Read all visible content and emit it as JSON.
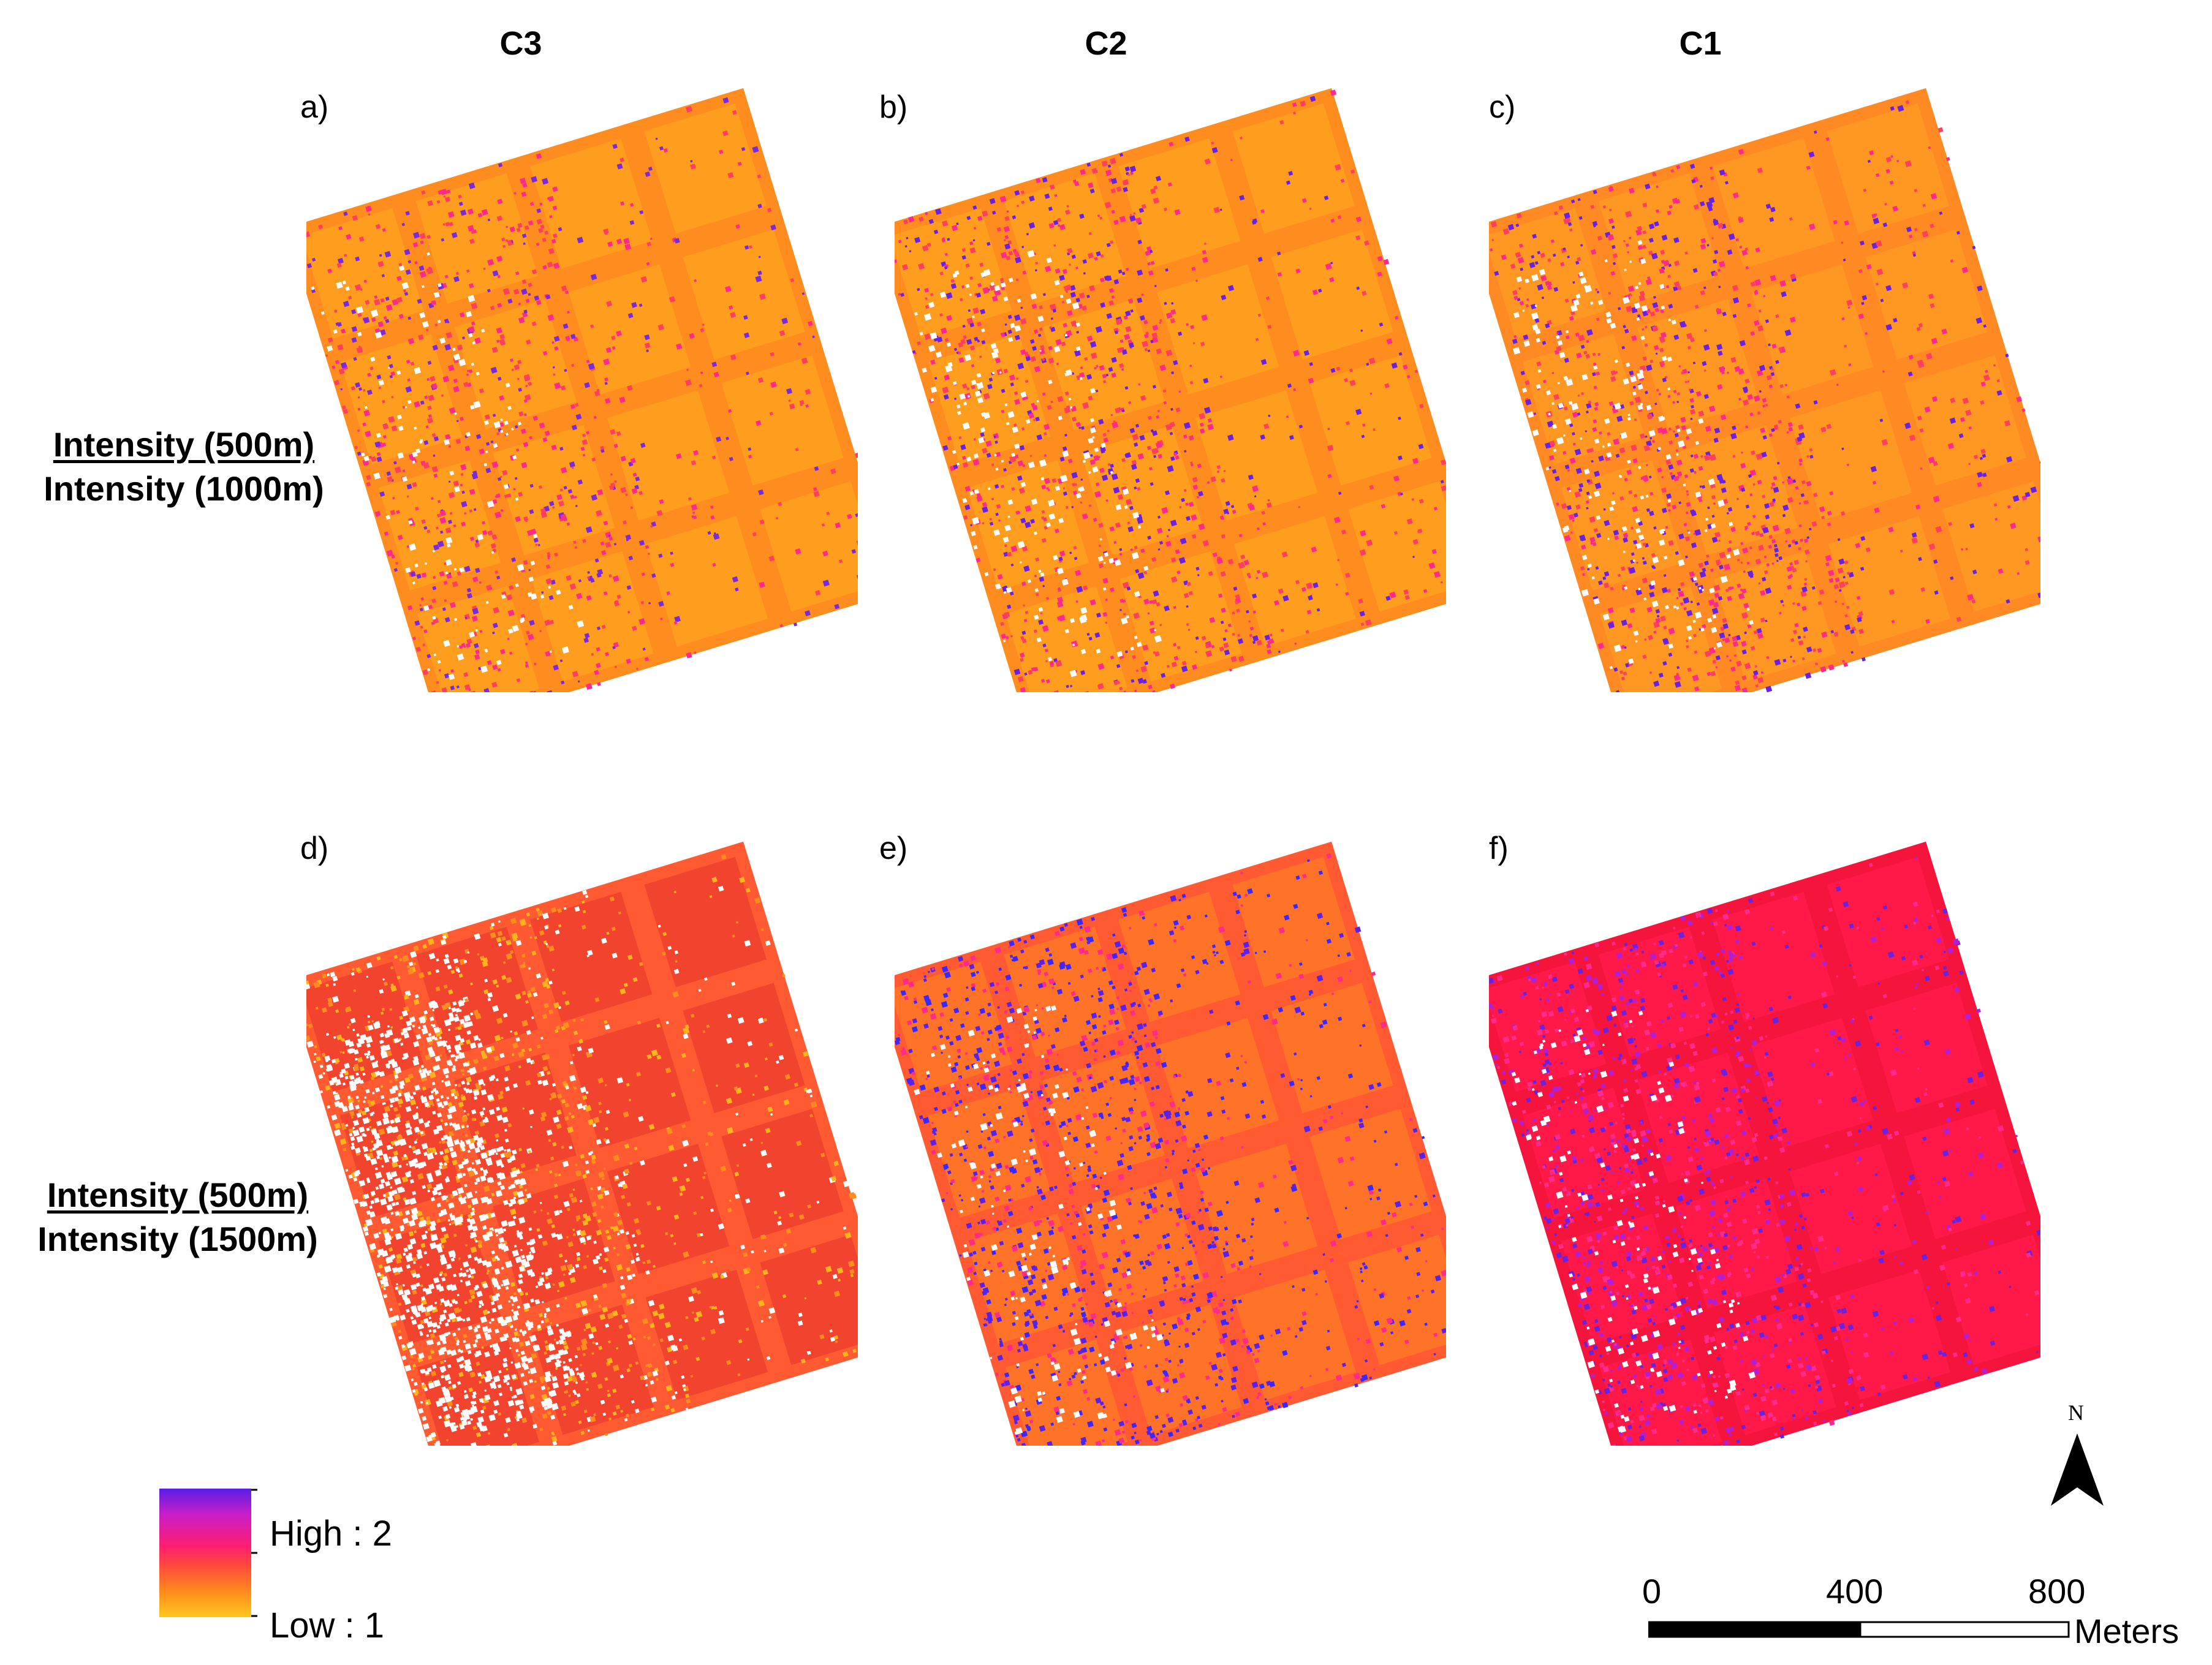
{
  "columns": [
    "C3",
    "C2",
    "C1"
  ],
  "panel_labels": [
    "a)",
    "b)",
    "c)",
    "d)",
    "e)",
    "f)"
  ],
  "rows": [
    {
      "numerator": "Intensity (500m)",
      "denominator": "Intensity (1000m)"
    },
    {
      "numerator": "Intensity (500m)",
      "denominator": "Intensity (1500m)"
    }
  ],
  "legend": {
    "high": "High : 2",
    "low": "Low : 1",
    "ramp_colors": [
      "#5a1ee6",
      "#c81ec8",
      "#ff1e6e",
      "#ff4a3a",
      "#ff8a1e",
      "#ffc81e"
    ]
  },
  "north_arrow": {
    "letter": "N"
  },
  "scale_bar": {
    "ticks": [
      "0",
      "400",
      "800"
    ],
    "unit": "Meters"
  },
  "palette": {
    "orange": "#ff8c1f",
    "light_orange": "#ffa020",
    "red_orange": "#ff5a32",
    "red": "#f5143c",
    "magenta": "#ff2a8a",
    "violet": "#6a22e0",
    "white": "#ffffff"
  },
  "panels": [
    {
      "id": "a",
      "base": "#ff8c1f",
      "field": "#ffa020",
      "speckle": [
        "#ff3f5c",
        "#ff2a8a",
        "#7a2ad8"
      ],
      "speckle_density": 0.35,
      "white_density": 0.05
    },
    {
      "id": "b",
      "base": "#ff8c1f",
      "field": "#ffa020",
      "speckle": [
        "#ff3f5c",
        "#ff2a8a",
        "#6a22e0"
      ],
      "speckle_density": 0.42,
      "white_density": 0.07
    },
    {
      "id": "c",
      "base": "#ff8a24",
      "field": "#ff9a22",
      "speckle": [
        "#ff3f5c",
        "#ff2a8a",
        "#6a22e0"
      ],
      "speckle_density": 0.45,
      "white_density": 0.07
    },
    {
      "id": "d",
      "base": "#ff5a32",
      "field": "#f0402e",
      "speckle": [
        "#ffffff",
        "#ffb21e",
        "#ff8c1f"
      ],
      "speckle_density": 0.55,
      "white_density": 0.35
    },
    {
      "id": "e",
      "base": "#ff5a32",
      "field": "#ff7828",
      "speckle": [
        "#5a22e8",
        "#ff2a8a",
        "#3a28ff"
      ],
      "speckle_density": 0.5,
      "white_density": 0.06
    },
    {
      "id": "f",
      "base": "#f5143c",
      "field": "#ff1a4a",
      "speckle": [
        "#6a22e0",
        "#ff2a8a",
        "#b41ed2"
      ],
      "speckle_density": 0.48,
      "white_density": 0.06
    }
  ]
}
